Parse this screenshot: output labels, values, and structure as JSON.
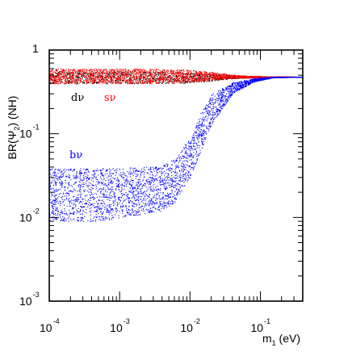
{
  "chart_data": {
    "type": "scatter",
    "title": "",
    "xlabel": {
      "main": "m",
      "sub": "1",
      "unit": " (eV)"
    },
    "ylabel": {
      "pre": "BR(Ψ",
      "sub": "2",
      "post": ") (NH)"
    },
    "xscale": "log",
    "yscale": "log",
    "xlim": [
      0.0001,
      0.4
    ],
    "ylim": [
      0.001,
      1
    ],
    "x_ticks": [
      {
        "base": "10",
        "exp": "-4"
      },
      {
        "base": "10",
        "exp": "-3"
      },
      {
        "base": "10",
        "exp": "-2"
      },
      {
        "base": "10",
        "exp": "-1"
      }
    ],
    "y_ticks": [
      {
        "value": 1,
        "base": "1",
        "exp": ""
      },
      {
        "value": 0.1,
        "base": "10",
        "exp": "-1"
      },
      {
        "value": 0.01,
        "base": "10",
        "exp": "-2"
      },
      {
        "value": 0.001,
        "base": "10",
        "exp": "-3"
      }
    ],
    "grid": false,
    "series": [
      {
        "name": "dν",
        "color": "#000000",
        "band_x": [
          0.0001,
          0.001,
          0.003,
          0.006,
          0.01,
          0.02,
          0.04,
          0.08,
          0.15,
          0.4
        ],
        "band_low": [
          0.4,
          0.4,
          0.4,
          0.4,
          0.41,
          0.43,
          0.46,
          0.47,
          0.48,
          0.48
        ],
        "band_high": [
          0.56,
          0.56,
          0.56,
          0.55,
          0.54,
          0.52,
          0.5,
          0.49,
          0.485,
          0.48
        ]
      },
      {
        "name": "sν",
        "color": "#ff0000",
        "band_x": [
          0.0001,
          0.001,
          0.003,
          0.006,
          0.01,
          0.02,
          0.04,
          0.08,
          0.15,
          0.4
        ],
        "band_low": [
          0.4,
          0.4,
          0.4,
          0.41,
          0.42,
          0.44,
          0.46,
          0.47,
          0.48,
          0.48
        ],
        "band_high": [
          0.6,
          0.6,
          0.6,
          0.59,
          0.58,
          0.55,
          0.51,
          0.49,
          0.485,
          0.48
        ]
      },
      {
        "name": "bν",
        "color": "#0000ff",
        "band_x": [
          0.0001,
          0.0005,
          0.001,
          0.002,
          0.004,
          0.006,
          0.01,
          0.015,
          0.02,
          0.04,
          0.08,
          0.15,
          0.4
        ],
        "band_low": [
          0.009,
          0.009,
          0.01,
          0.011,
          0.012,
          0.015,
          0.03,
          0.07,
          0.13,
          0.3,
          0.42,
          0.47,
          0.48
        ],
        "band_high": [
          0.039,
          0.039,
          0.039,
          0.04,
          0.042,
          0.05,
          0.09,
          0.2,
          0.3,
          0.41,
          0.46,
          0.48,
          0.48
        ]
      }
    ]
  }
}
